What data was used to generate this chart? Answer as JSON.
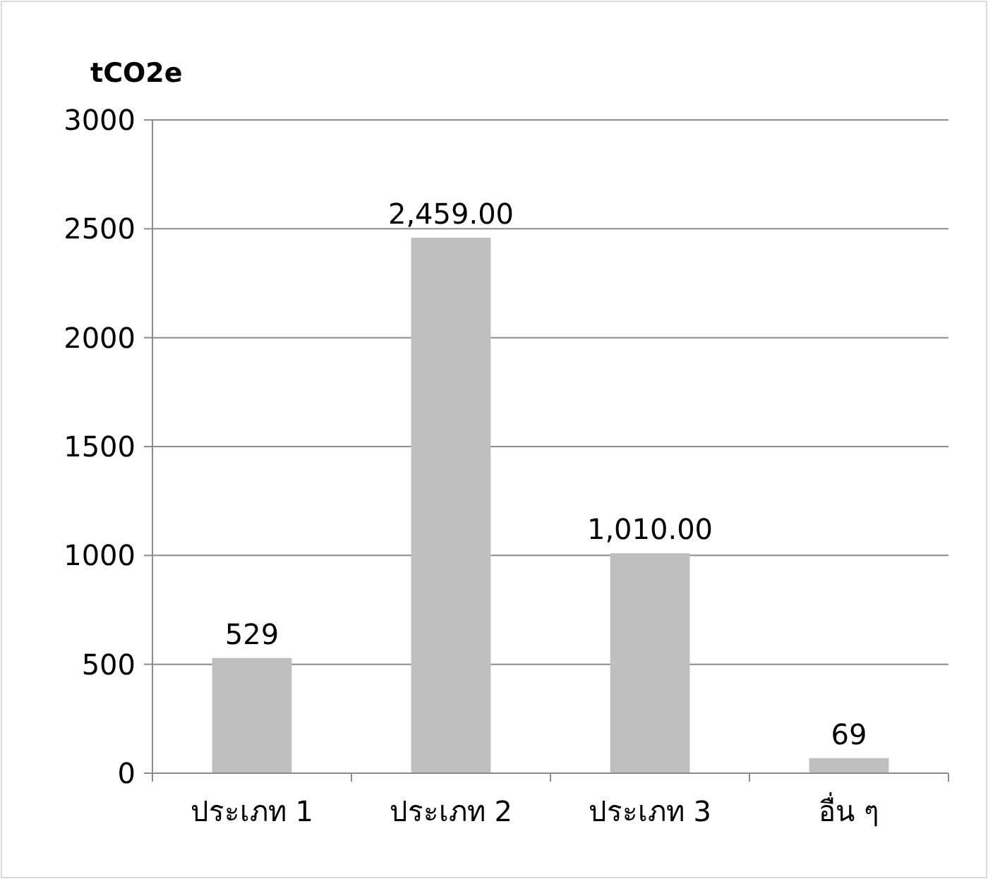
{
  "chart_data": {
    "type": "bar",
    "ylabel": "tCO2e",
    "categories": [
      "ประเภท 1",
      "ประเภท 2",
      "ประเภท 3",
      "อื่น ๆ"
    ],
    "values": [
      529,
      2459,
      1010,
      69
    ],
    "value_labels": [
      "529",
      "2,459.00",
      "1,010.00",
      "69"
    ],
    "color": "#bfbfbf",
    "ylim": [
      0,
      3000
    ],
    "yticks": [
      0,
      500,
      1000,
      1500,
      2000,
      2500,
      3000
    ],
    "grid": "y"
  }
}
